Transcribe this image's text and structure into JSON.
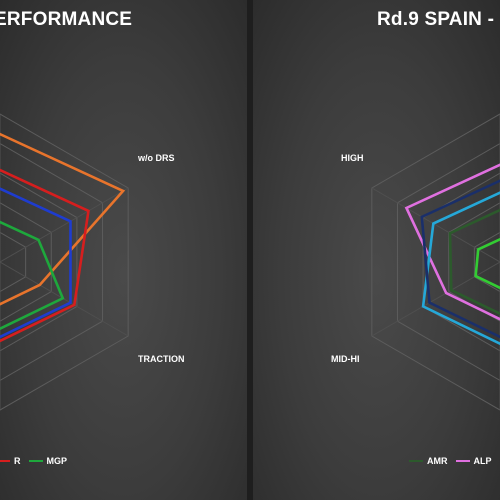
{
  "chart_data": [
    {
      "type": "radar",
      "title": "ERFORMANCE",
      "axis_labels": [
        "w/o DRS",
        "TRACTION"
      ],
      "grid": true,
      "legend_position": "bottom",
      "series": [
        {
          "color": "#e8742c",
          "values": [
            0.96,
            0.31
          ]
        },
        {
          "color": "#d61e1e",
          "values": [
            0.69,
            0.58
          ]
        },
        {
          "color": "#1e3cd0",
          "values": [
            0.55,
            0.55
          ]
        },
        {
          "color": "#1ea83c",
          "values": [
            0.3,
            0.49
          ]
        }
      ],
      "legend": [
        {
          "name": "R",
          "color": "#d61e1e"
        },
        {
          "name": "MGP",
          "color": "#1ea83c"
        }
      ]
    },
    {
      "type": "radar",
      "title": "Rd.9 SPAIN - (",
      "axis_labels": [
        "HIGH",
        "MID-HI"
      ],
      "grid": true,
      "legend_position": "bottom",
      "series": [
        {
          "color": "#e070e0",
          "values": [
            0.73,
            0.42
          ]
        },
        {
          "color": "#25a8d8",
          "values": [
            0.52,
            0.6
          ]
        },
        {
          "color": "#1a2f6a",
          "values": [
            0.61,
            0.55
          ]
        },
        {
          "color": "#2c5a2c",
          "values": [
            0.39,
            0.38
          ]
        },
        {
          "color": "#33cc33",
          "values": [
            0.17,
            0.19
          ]
        }
      ],
      "legend": [
        {
          "name": "AMR",
          "color": "#2c5a2c"
        },
        {
          "name": "ALP",
          "color": "#e070e0"
        }
      ]
    }
  ]
}
